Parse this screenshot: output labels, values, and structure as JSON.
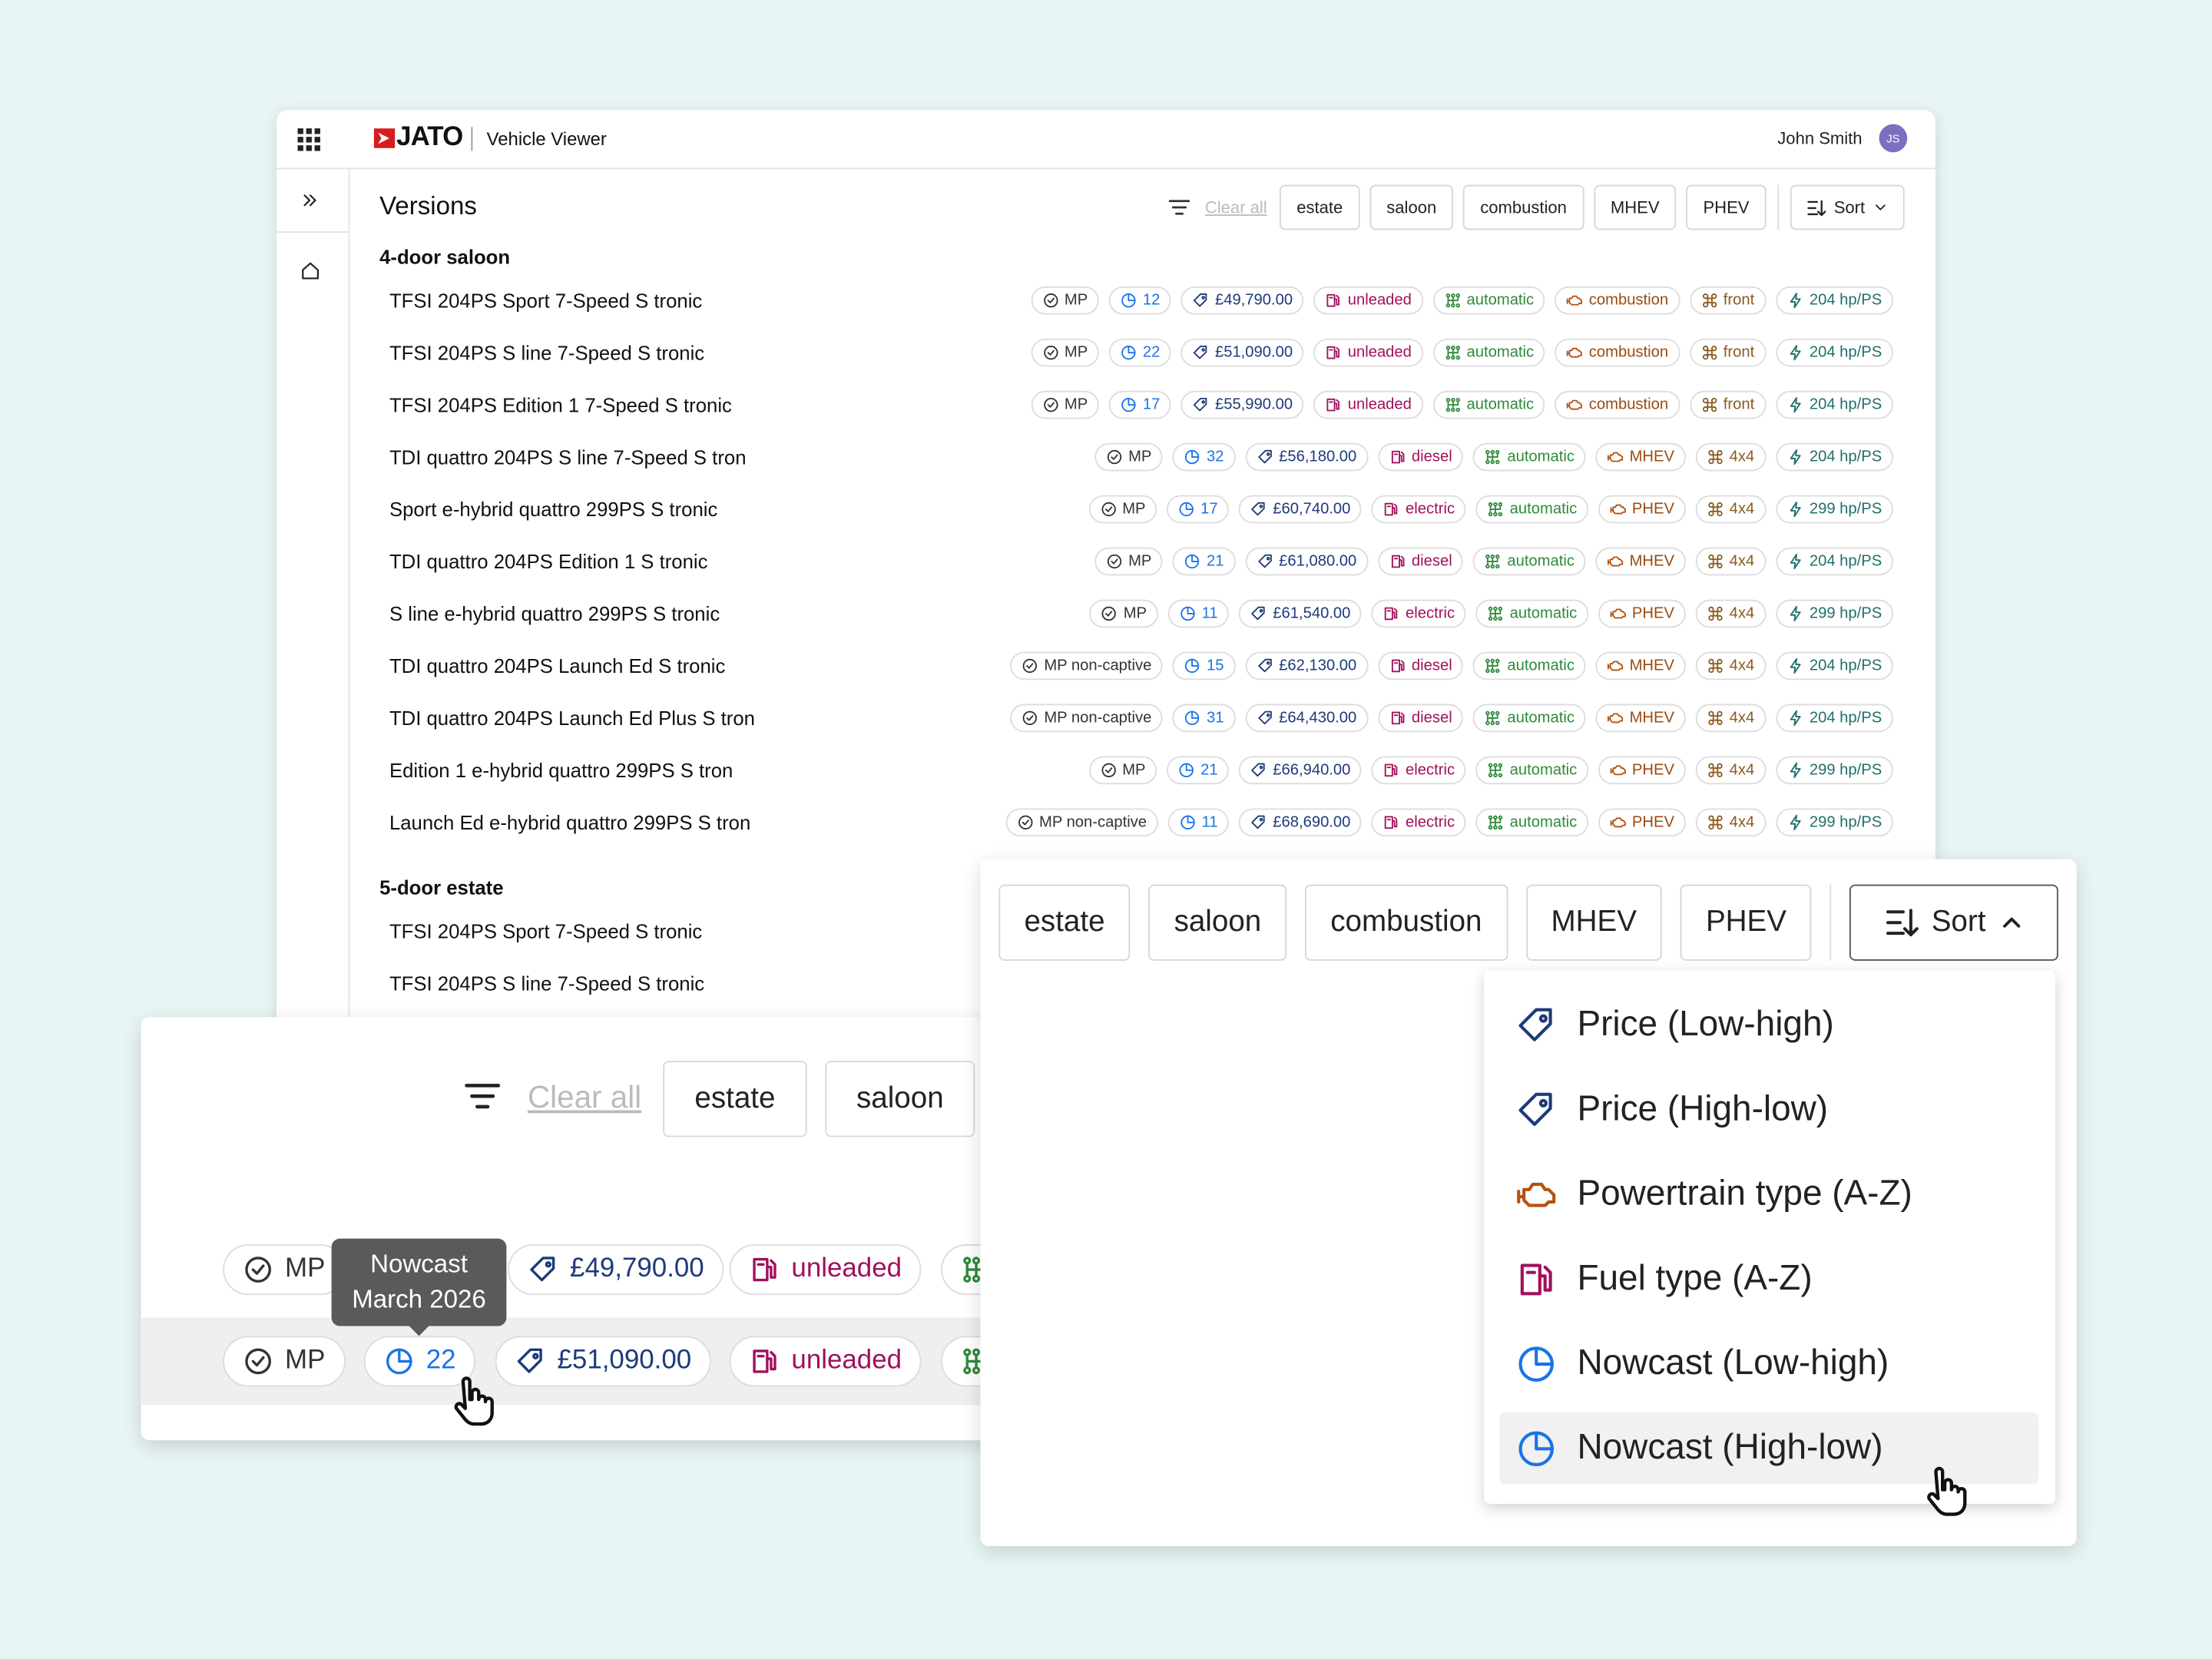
{
  "header": {
    "brand": "JATO",
    "app": "Vehicle Viewer",
    "user": "John Smith",
    "initials": "JS"
  },
  "versions": {
    "title": "Versions",
    "clear": "Clear all",
    "filters": [
      "estate",
      "saloon",
      "combustion",
      "MHEV",
      "PHEV"
    ],
    "sort": "Sort",
    "groups": [
      {
        "name": "4-door saloon",
        "rows": [
          {
            "name": "TFSI 204PS Sport 7-Speed S tronic",
            "tags": [
              "MP",
              "12",
              "£49,790.00",
              "unleaded",
              "automatic",
              "combustion",
              "front",
              "204 hp/PS"
            ]
          },
          {
            "name": "TFSI 204PS S line 7-Speed S tronic",
            "tags": [
              "MP",
              "22",
              "£51,090.00",
              "unleaded",
              "automatic",
              "combustion",
              "front",
              "204 hp/PS"
            ]
          },
          {
            "name": "TFSI 204PS Edition 1 7-Speed S tronic",
            "tags": [
              "MP",
              "17",
              "£55,990.00",
              "unleaded",
              "automatic",
              "combustion",
              "front",
              "204 hp/PS"
            ]
          },
          {
            "name": "TDI quattro 204PS S line 7-Speed S tron",
            "tags": [
              "MP",
              "32",
              "£56,180.00",
              "diesel",
              "automatic",
              "MHEV",
              "4x4",
              "204 hp/PS"
            ]
          },
          {
            "name": "Sport e-hybrid quattro 299PS S tronic",
            "tags": [
              "MP",
              "17",
              "£60,740.00",
              "electric",
              "automatic",
              "PHEV",
              "4x4",
              "299 hp/PS"
            ]
          },
          {
            "name": "TDI quattro 204PS Edition 1 S tronic",
            "tags": [
              "MP",
              "21",
              "£61,080.00",
              "diesel",
              "automatic",
              "MHEV",
              "4x4",
              "204 hp/PS"
            ]
          },
          {
            "name": "S line e-hybrid quattro 299PS S tronic",
            "tags": [
              "MP",
              "11",
              "£61,540.00",
              "electric",
              "automatic",
              "PHEV",
              "4x4",
              "299 hp/PS"
            ]
          },
          {
            "name": "TDI quattro 204PS Launch Ed S tronic",
            "tags": [
              "MP non-captive",
              "15",
              "£62,130.00",
              "diesel",
              "automatic",
              "MHEV",
              "4x4",
              "204 hp/PS"
            ]
          },
          {
            "name": "TDI quattro 204PS Launch Ed Plus S tron",
            "tags": [
              "MP non-captive",
              "31",
              "£64,430.00",
              "diesel",
              "automatic",
              "MHEV",
              "4x4",
              "204 hp/PS"
            ]
          },
          {
            "name": "Edition 1 e-hybrid quattro 299PS S tron",
            "tags": [
              "MP",
              "21",
              "£66,940.00",
              "electric",
              "automatic",
              "PHEV",
              "4x4",
              "299 hp/PS"
            ]
          },
          {
            "name": "Launch Ed e-hybrid quattro 299PS S tron",
            "tags": [
              "MP non-captive",
              "11",
              "£68,690.00",
              "electric",
              "automatic",
              "PHEV",
              "4x4",
              "299 hp/PS"
            ]
          }
        ]
      },
      {
        "name": "5-door estate",
        "rows": [
          {
            "name": "TFSI 204PS Sport 7-Speed S tronic"
          },
          {
            "name": "TFSI 204PS S line 7-Speed S tronic"
          }
        ]
      }
    ]
  },
  "zoom_left": {
    "clear": "Clear all",
    "filters": [
      "estate",
      "saloon"
    ],
    "tooltip": [
      "Nowcast",
      "March 2026"
    ],
    "rows": [
      [
        "MP",
        "£49,790.00",
        "unleaded"
      ],
      [
        "MP",
        "22",
        "£51,090.00",
        "unleaded"
      ]
    ]
  },
  "zoom_right": {
    "filters": [
      "estate",
      "saloon",
      "combustion",
      "MHEV",
      "PHEV"
    ],
    "sort": "Sort",
    "menu": [
      "Price (Low-high)",
      "Price (High-low)",
      "Powertrain type (A-Z)",
      "Fuel type (A-Z)",
      "Nowcast (Low-high)",
      "Nowcast (High-low)"
    ]
  }
}
